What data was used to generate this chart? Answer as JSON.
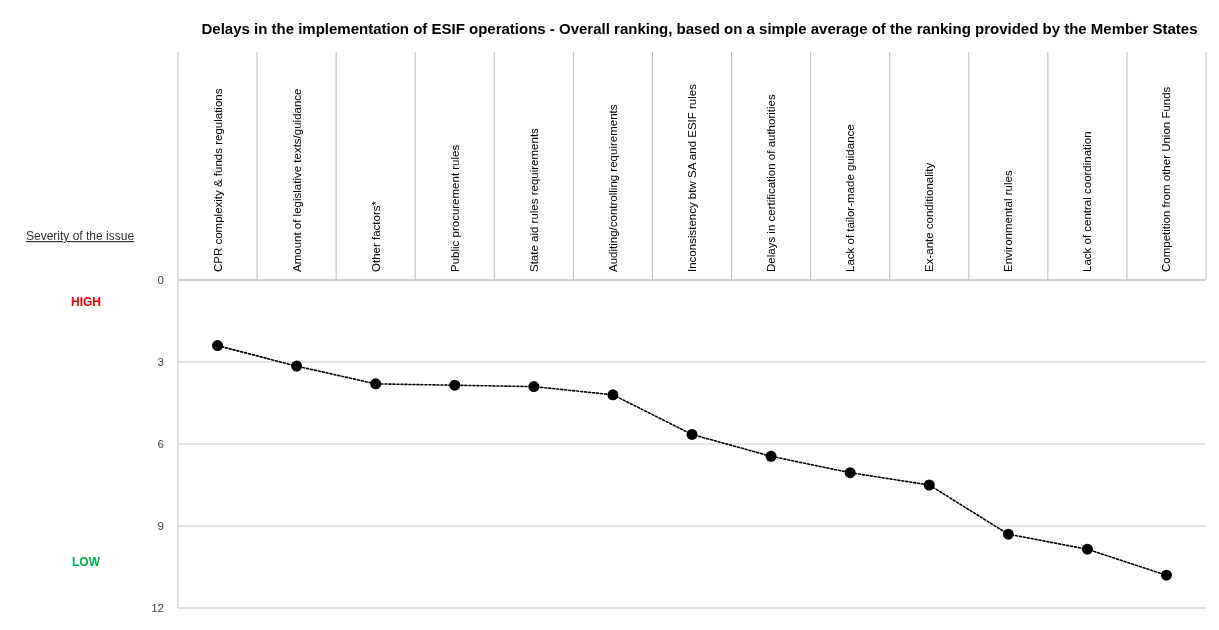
{
  "chart_data": {
    "type": "line",
    "title": "Delays in the implementation of ESIF operations - Overall ranking, based on a simple average of the ranking provided by the Member States",
    "ylabel": "Severity of the issue",
    "categories": [
      "CPR complexity & funds regulations",
      "Amount of legislative texts/guidance",
      "Other factors*",
      "Public procurement rules",
      "State aid rules requirements",
      "Auditing/controlling requirements",
      "Inconsistency btw SA and ESIF rules",
      "Delays in certification of authorities",
      "Lack of tailor-made guidance",
      "Ex-ante conditionality",
      "Environmental rules",
      "Lack of central coordination",
      "Competition from other Union Funds"
    ],
    "series": [
      {
        "color": "#000000",
        "values": [
          2.4,
          3.15,
          3.8,
          3.85,
          3.9,
          4.2,
          5.65,
          6.45,
          7.05,
          7.5,
          9.3,
          9.85,
          10.8
        ]
      }
    ],
    "ylim": [
      12,
      0
    ],
    "yticks": [
      0,
      3,
      6,
      9,
      12
    ],
    "grid": "y",
    "marker": "circle",
    "line_style": "dotted",
    "annotations": [
      "HIGH",
      "LOW"
    ]
  }
}
